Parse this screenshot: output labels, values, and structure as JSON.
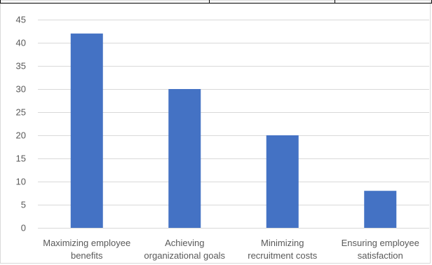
{
  "chart_data": {
    "type": "bar",
    "categories": [
      [
        "Maximizing employee",
        "benefits"
      ],
      [
        "Achieving",
        "organizational goals"
      ],
      [
        "Minimizing",
        "recruitment costs"
      ],
      [
        "Ensuring employee",
        "satisfaction"
      ]
    ],
    "values": [
      42,
      30,
      20,
      8
    ],
    "ylim": [
      0,
      45
    ],
    "yticks": [
      0,
      5,
      10,
      15,
      20,
      25,
      30,
      35,
      40,
      45
    ],
    "grid": true,
    "bar_color": "#4472c4",
    "grid_color": "#d9d9d9",
    "title": "",
    "xlabel": "",
    "ylabel": ""
  }
}
